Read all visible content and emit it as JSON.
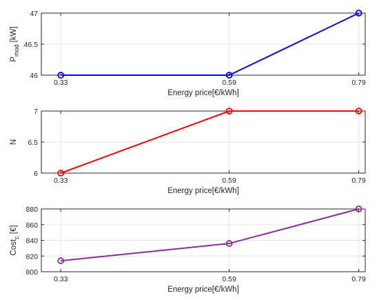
{
  "chart_data": [
    {
      "type": "line",
      "x": [
        0.33,
        0.59,
        0.79
      ],
      "xticks": [
        "0.33",
        "0.59",
        "0.79"
      ],
      "xlim": [
        0.3,
        0.8
      ],
      "xlabel": "Energy price[€/kWh]",
      "ylabel_main": "P",
      "ylabel_sub": "mod",
      "ylabel_rest": " [kW]",
      "ylim": [
        46,
        47
      ],
      "yticks": [
        "46",
        "46.5",
        "47"
      ],
      "grid": true,
      "marker": "circle",
      "color": "#0000ff",
      "series": [
        {
          "values": [
            46,
            46,
            47
          ]
        }
      ]
    },
    {
      "type": "line",
      "x": [
        0.33,
        0.59,
        0.79
      ],
      "xticks": [
        "0.33",
        "0.59",
        "0.79"
      ],
      "xlim": [
        0.3,
        0.8
      ],
      "xlabel": "Energy price[€/kWh]",
      "ylabel_main": "N",
      "ylabel_sub": "",
      "ylabel_rest": "",
      "ylim": [
        6,
        7
      ],
      "yticks": [
        "6",
        "6.5",
        "7"
      ],
      "grid": true,
      "marker": "circle",
      "color": "#ff0000",
      "series": [
        {
          "values": [
            6,
            7,
            7
          ]
        }
      ]
    },
    {
      "type": "line",
      "x": [
        0.33,
        0.59,
        0.79
      ],
      "xticks": [
        "0.33",
        "0.59",
        "0.79"
      ],
      "xlim": [
        0.3,
        0.8
      ],
      "xlabel": "Energy price[€/kWh]",
      "ylabel_main": "Cost",
      "ylabel_sub": "c",
      "ylabel_rest": " [€]",
      "ylim": [
        800,
        880
      ],
      "yticks": [
        "800",
        "820",
        "840",
        "860",
        "880"
      ],
      "grid": true,
      "marker": "circle",
      "color": "#8b2a9a",
      "series": [
        {
          "values": [
            814,
            836,
            880
          ]
        }
      ]
    }
  ]
}
